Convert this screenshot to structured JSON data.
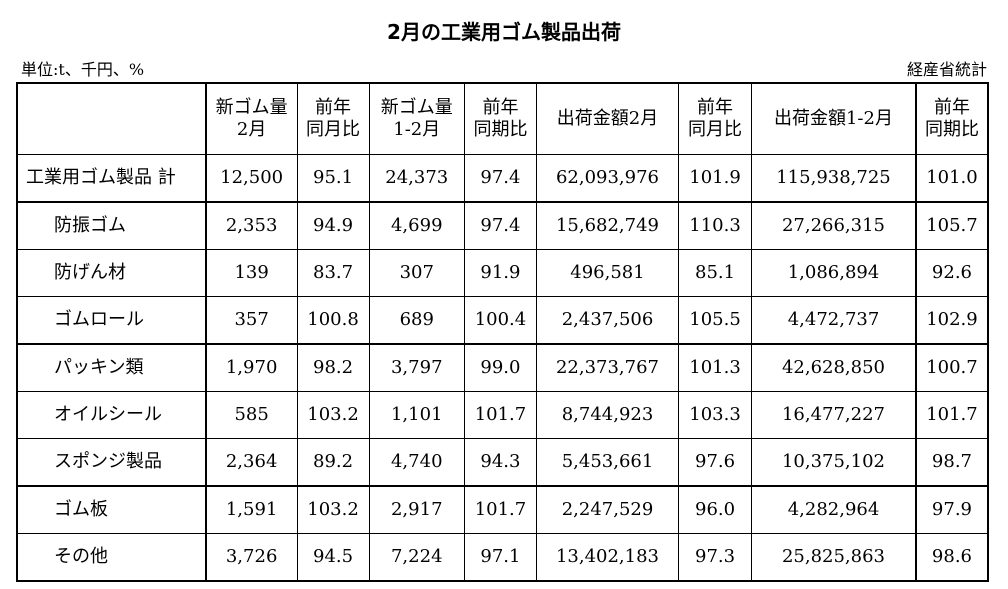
{
  "title": "2月の工業用ゴム製品出荷",
  "unit": "単位:t、千円、%",
  "source": "経産省統計",
  "headers": [
    {
      "line1": "",
      "line2": ""
    },
    {
      "line1": "新ゴム量",
      "line2": "2月"
    },
    {
      "line1": "前年",
      "line2": "同月比"
    },
    {
      "line1": "新ゴム量",
      "line2": "1-2月"
    },
    {
      "line1": "前年",
      "line2": "同期比"
    },
    {
      "line1": "出荷金額2月",
      "line2": ""
    },
    {
      "line1": "前年",
      "line2": "同月比"
    },
    {
      "line1": "出荷金額1-2月",
      "line2": ""
    },
    {
      "line1": "前年",
      "line2": "同期比"
    }
  ],
  "rows": [
    {
      "name": "工業用ゴム製品 計",
      "values": [
        "12,500",
        "95.1",
        "24,373",
        "97.4",
        "62,093,976",
        "101.9",
        "115,938,725",
        "101.0"
      ]
    },
    {
      "name": "防振ゴム",
      "values": [
        "2,353",
        "94.9",
        "4,699",
        "97.4",
        "15,682,749",
        "110.3",
        "27,266,315",
        "105.7"
      ]
    },
    {
      "name": "防げん材",
      "values": [
        "139",
        "83.7",
        "307",
        "91.9",
        "496,581",
        "85.1",
        "1,086,894",
        "92.6"
      ]
    },
    {
      "name": "ゴムロール",
      "values": [
        "357",
        "100.8",
        "689",
        "100.4",
        "2,437,506",
        "105.5",
        "4,472,737",
        "102.9"
      ]
    },
    {
      "name": "パッキン類",
      "values": [
        "1,970",
        "98.2",
        "3,797",
        "99.0",
        "22,373,767",
        "101.3",
        "42,628,850",
        "100.7"
      ]
    },
    {
      "name": "オイルシール",
      "values": [
        "585",
        "103.2",
        "1,101",
        "101.7",
        "8,744,923",
        "103.3",
        "16,477,227",
        "101.7"
      ]
    },
    {
      "name": "スポンジ製品",
      "values": [
        "2,364",
        "89.2",
        "4,740",
        "94.3",
        "5,453,661",
        "97.6",
        "10,375,102",
        "98.7"
      ]
    },
    {
      "name": "ゴム板",
      "values": [
        "1,591",
        "103.2",
        "2,917",
        "101.7",
        "2,247,529",
        "96.0",
        "4,282,964",
        "97.9"
      ]
    },
    {
      "name": "その他",
      "values": [
        "3,726",
        "94.5",
        "7,224",
        "97.1",
        "13,402,183",
        "97.3",
        "25,825,863",
        "98.6"
      ]
    }
  ]
}
